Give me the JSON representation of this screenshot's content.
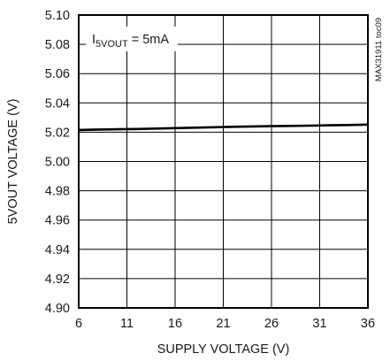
{
  "chart_data": {
    "type": "line",
    "title": "",
    "xlabel": "SUPPLY VOLTAGE (V)",
    "ylabel": "5VOUT VOLTAGE (V)",
    "xlim": [
      6,
      36
    ],
    "ylim": [
      4.9,
      5.1
    ],
    "xticks": [
      "6",
      "11",
      "16",
      "21",
      "26",
      "31",
      "36"
    ],
    "yticks": [
      "4.90",
      "4.92",
      "4.94",
      "4.96",
      "4.98",
      "5.00",
      "5.02",
      "5.04",
      "5.06",
      "5.08",
      "5.10"
    ],
    "grid": true,
    "annotation": {
      "prefix": "I",
      "subscript": "5VOUT",
      "suffix": " = 5mA"
    },
    "figure_id": "MAX31911 toc09",
    "series": [
      {
        "color": "#000000",
        "x": [
          6,
          8,
          10,
          12,
          14,
          16,
          18,
          20,
          22,
          24,
          26,
          28,
          30,
          32,
          34,
          36
        ],
        "y": [
          5.0215,
          5.0218,
          5.022,
          5.0222,
          5.0225,
          5.0228,
          5.0231,
          5.0234,
          5.0237,
          5.0239,
          5.0241,
          5.0243,
          5.0245,
          5.0247,
          5.0249,
          5.0252
        ]
      }
    ]
  }
}
